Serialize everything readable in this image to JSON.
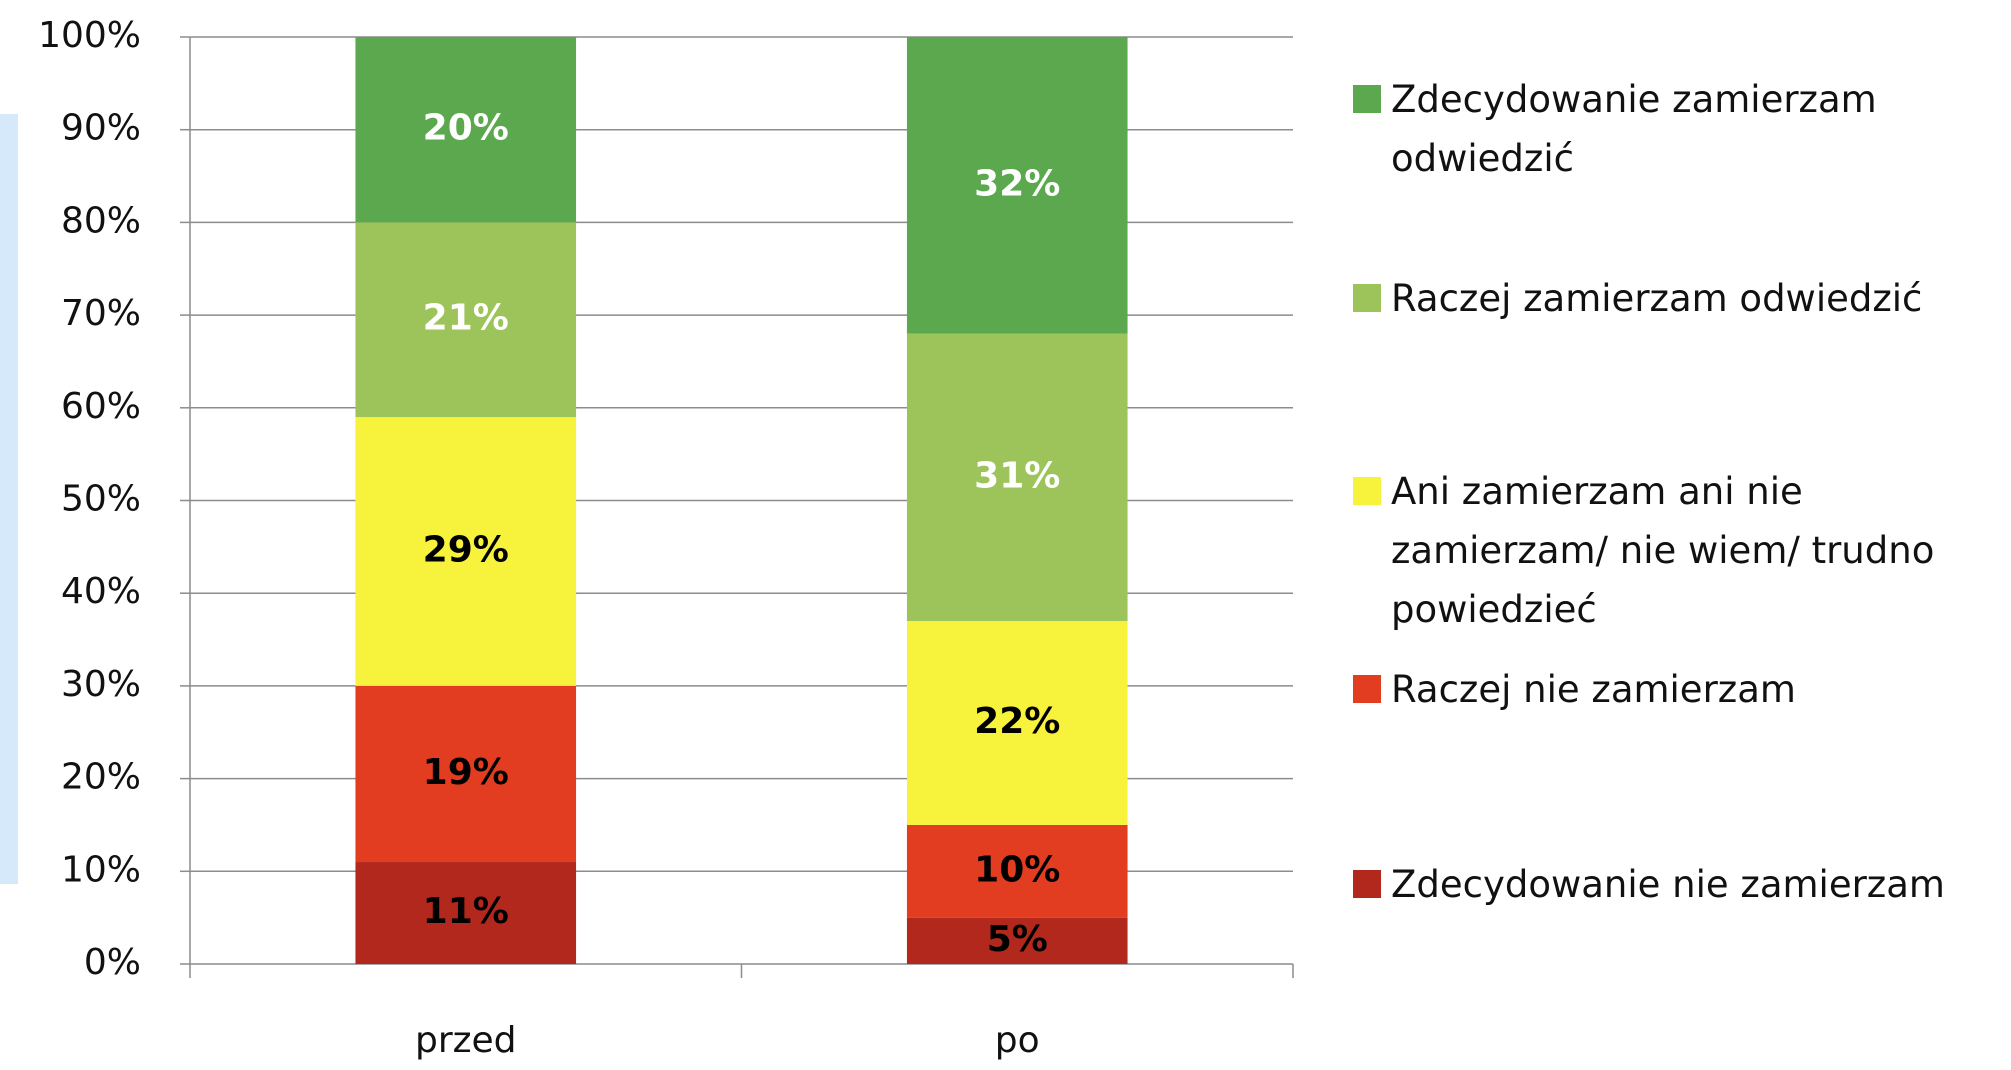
{
  "chart_data": {
    "type": "stacked_bar",
    "categories": [
      "przed",
      "po"
    ],
    "series": [
      {
        "name": "Zdecydowanie nie zamierzam",
        "color": "#b3281c",
        "label_color": "#000000",
        "values": [
          11,
          5
        ],
        "value_labels": [
          "11%",
          "5%"
        ]
      },
      {
        "name": "Raczej nie zamierzam",
        "color": "#e23d20",
        "label_color": "#000000",
        "values": [
          19,
          10
        ],
        "value_labels": [
          "19%",
          "10%"
        ]
      },
      {
        "name": "Ani zamierzam ani nie zamierzam/ nie wiem/ trudno powiedzieć",
        "color": "#f7f23c",
        "label_color": "#000000",
        "values": [
          29,
          22
        ],
        "value_labels": [
          "29%",
          "22%"
        ]
      },
      {
        "name": "Raczej zamierzam odwiedzić",
        "color": "#9dc45a",
        "label_color": "#ffffff",
        "values": [
          21,
          31
        ],
        "value_labels": [
          "21%",
          "31%"
        ]
      },
      {
        "name": "Zdecydowanie zamierzam odwiedzić",
        "color": "#5ba84e",
        "label_color": "#ffffff",
        "values": [
          20,
          32
        ],
        "value_labels": [
          "20%",
          "32%"
        ]
      }
    ],
    "ylim": [
      0,
      100
    ],
    "yticks": [
      {
        "value": 0,
        "label": "0%"
      },
      {
        "value": 10,
        "label": "10%"
      },
      {
        "value": 20,
        "label": "20%"
      },
      {
        "value": 30,
        "label": "30%"
      },
      {
        "value": 40,
        "label": "40%"
      },
      {
        "value": 50,
        "label": "50%"
      },
      {
        "value": 60,
        "label": "60%"
      },
      {
        "value": 70,
        "label": "70%"
      },
      {
        "value": 80,
        "label": "80%"
      },
      {
        "value": 90,
        "label": "90%"
      },
      {
        "value": 100,
        "label": "100%"
      }
    ],
    "grid": true,
    "legend": "right"
  }
}
